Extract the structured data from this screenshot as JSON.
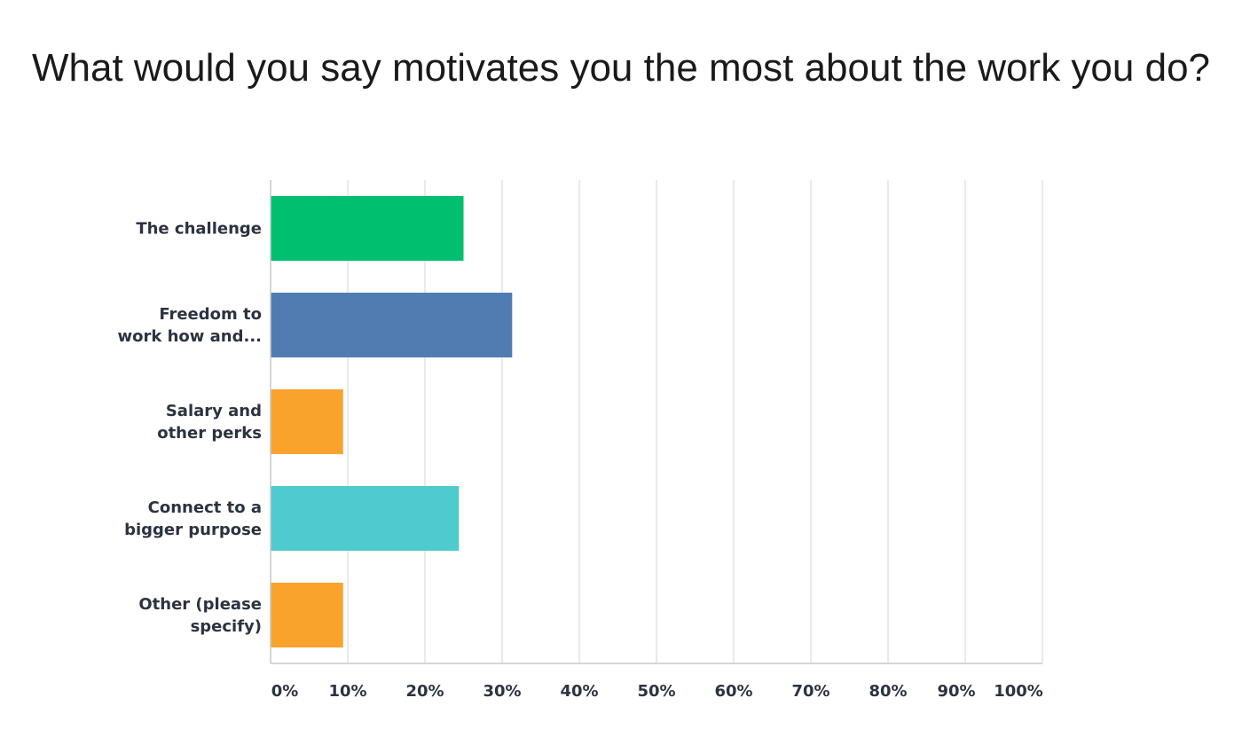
{
  "chart_data": {
    "type": "bar",
    "orientation": "horizontal",
    "title": "What would you say motivates you the most about the work you do?",
    "categories": [
      [
        "The challenge"
      ],
      [
        "Freedom to",
        "work how and..."
      ],
      [
        "Salary and",
        "other perks"
      ],
      [
        "Connect to a",
        "bigger purpose"
      ],
      [
        "Other (please",
        "specify)"
      ]
    ],
    "values": [
      25,
      31.3,
      9.4,
      24.4,
      9.4
    ],
    "colors": [
      "#00bf6f",
      "#507cb1",
      "#f9a22c",
      "#4fcacd",
      "#f9a22c"
    ],
    "xlim": [
      0,
      100
    ],
    "xticks": [
      0,
      10,
      20,
      30,
      40,
      50,
      60,
      70,
      80,
      90,
      100
    ],
    "xtick_labels": [
      "0%",
      "10%",
      "20%",
      "30%",
      "40%",
      "50%",
      "60%",
      "70%",
      "80%",
      "90%",
      "100%"
    ],
    "grid": true,
    "xlabel": "",
    "ylabel": ""
  }
}
